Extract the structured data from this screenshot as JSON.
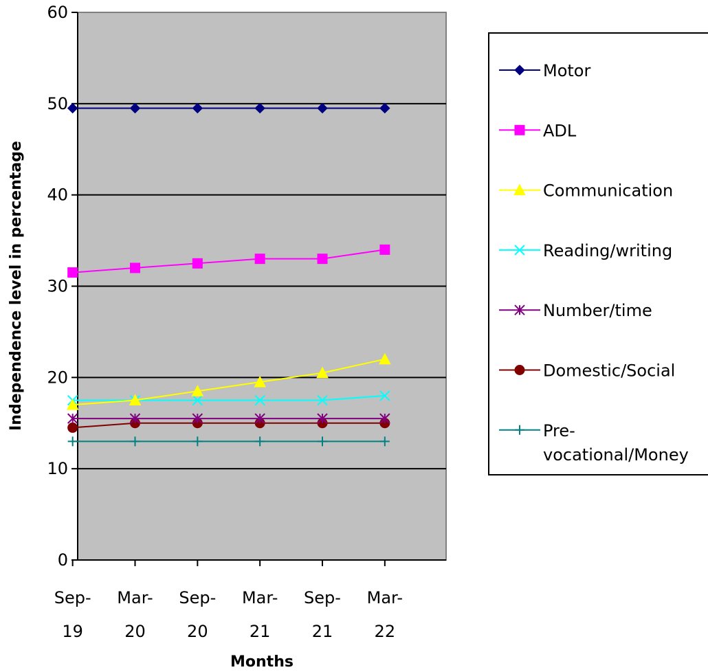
{
  "chart_data": {
    "type": "line",
    "title": "",
    "xlabel": "Months",
    "ylabel": "Independence level in percentage",
    "categories": [
      [
        "Sep-",
        "19"
      ],
      [
        "Mar-",
        "20"
      ],
      [
        "Sep-",
        "20"
      ],
      [
        "Mar-",
        "21"
      ],
      [
        "Sep-",
        "21"
      ],
      [
        "Mar-",
        "22"
      ]
    ],
    "ylim": [
      0,
      60
    ],
    "yticks": [
      "0",
      "10",
      "20",
      "30",
      "40",
      "50",
      "60"
    ],
    "grid": true,
    "legend_position": "right",
    "plot_background": "#c0c0c0",
    "series": [
      {
        "name": "Motor",
        "name_lines": [
          "Motor"
        ],
        "values": [
          49.5,
          49.5,
          49.5,
          49.5,
          49.5,
          49.5
        ],
        "color": "#000080",
        "marker": "diamond"
      },
      {
        "name": "ADL",
        "name_lines": [
          "ADL"
        ],
        "values": [
          31.5,
          32,
          32.5,
          33,
          33,
          34
        ],
        "color": "#ff00ff",
        "marker": "square"
      },
      {
        "name": "Communication",
        "name_lines": [
          "Communication"
        ],
        "values": [
          17,
          17.5,
          18.5,
          19.5,
          20.5,
          22
        ],
        "color": "#ffff00",
        "marker": "triangle"
      },
      {
        "name": "Reading/writing",
        "name_lines": [
          "Reading/writing"
        ],
        "values": [
          17.5,
          17.5,
          17.5,
          17.5,
          17.5,
          18
        ],
        "color": "#00ffff",
        "marker": "x"
      },
      {
        "name": "Number/time",
        "name_lines": [
          "Number/time"
        ],
        "values": [
          15.5,
          15.5,
          15.5,
          15.5,
          15.5,
          15.5
        ],
        "color": "#800080",
        "marker": "star"
      },
      {
        "name": "Domestic/Social",
        "name_lines": [
          "Domestic/Social"
        ],
        "values": [
          14.5,
          15,
          15,
          15,
          15,
          15
        ],
        "color": "#800000",
        "marker": "circle"
      },
      {
        "name": "Pre-vocational/Money",
        "name_lines": [
          "Pre-",
          "vocational/Money"
        ],
        "values": [
          13,
          13,
          13,
          13,
          13,
          13
        ],
        "color": "#008080",
        "marker": "plus"
      }
    ]
  }
}
